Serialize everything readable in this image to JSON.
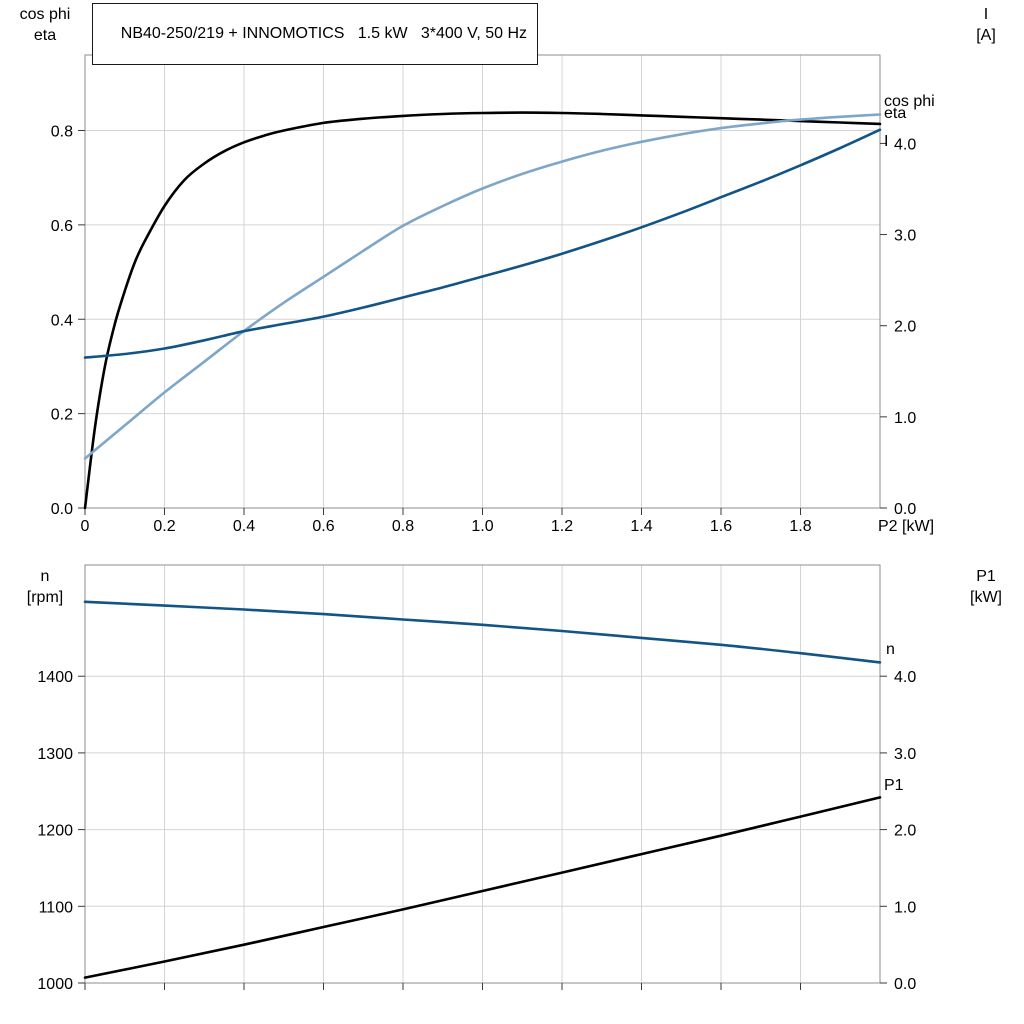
{
  "title": "NB40-250/219 + INNOMOTICS   1.5 kW   3*400 V, 50 Hz",
  "colors": {
    "black": "#000000",
    "dark_blue": "#125486",
    "light_blue": "#7ea6c8",
    "grid": "#d4d4d4",
    "frame": "#8c8c8c"
  },
  "chart_data": [
    {
      "type": "line",
      "title": "Motor electrical curves",
      "xlabel": "P2 [kW]",
      "xlim": [
        0,
        2.0
      ],
      "grid": true,
      "legend_position": "curve-end-labels",
      "xticks": {
        "values": [
          0,
          0.2,
          0.4,
          0.6,
          0.8,
          1.0,
          1.2,
          1.4,
          1.6,
          1.8
        ],
        "labels": [
          "0",
          "0.2",
          "0.4",
          "0.6",
          "0.8",
          "1.0",
          "1.2",
          "1.4",
          "1.6",
          "1.8"
        ]
      },
      "left_axis": {
        "label": "cos phi\neta",
        "lim": [
          0,
          0.96
        ],
        "ticks": {
          "values": [
            0,
            0.2,
            0.4,
            0.6,
            0.8
          ],
          "labels": [
            "0.0",
            "0.2",
            "0.4",
            "0.6",
            "0.8"
          ]
        }
      },
      "right_axis": {
        "label": "I\n[A]",
        "lim": [
          0,
          4.97
        ],
        "ticks": {
          "values": [
            0,
            1.0,
            2.0,
            3.0,
            4.0
          ],
          "labels": [
            "0.0",
            "1.0",
            "2.0",
            "3.0",
            "4.0"
          ]
        }
      },
      "series": [
        {
          "name": "eta",
          "label": "eta",
          "axis": "left",
          "color": "#000000",
          "x": [
            0,
            0.025,
            0.05,
            0.075,
            0.1,
            0.125,
            0.15,
            0.2,
            0.25,
            0.3,
            0.35,
            0.4,
            0.45,
            0.5,
            0.6,
            0.7,
            0.8,
            0.9,
            1.0,
            1.1,
            1.2,
            1.3,
            1.4,
            1.5,
            1.6,
            1.7,
            1.8,
            1.9,
            2.0
          ],
          "y": [
            0,
            0.17,
            0.3,
            0.39,
            0.46,
            0.52,
            0.565,
            0.64,
            0.695,
            0.73,
            0.756,
            0.775,
            0.789,
            0.8,
            0.816,
            0.825,
            0.831,
            0.835,
            0.837,
            0.838,
            0.837,
            0.835,
            0.832,
            0.829,
            0.826,
            0.823,
            0.82,
            0.817,
            0.814
          ]
        },
        {
          "name": "cos phi",
          "label": "cos phi",
          "axis": "left",
          "color": "#7ea6c8",
          "x": [
            0,
            0.1,
            0.2,
            0.3,
            0.4,
            0.5,
            0.6,
            0.7,
            0.8,
            0.9,
            1.0,
            1.1,
            1.2,
            1.3,
            1.4,
            1.5,
            1.6,
            1.7,
            1.8,
            1.9,
            2.0
          ],
          "y": [
            0.105,
            0.175,
            0.245,
            0.31,
            0.375,
            0.435,
            0.49,
            0.545,
            0.598,
            0.64,
            0.677,
            0.708,
            0.734,
            0.757,
            0.776,
            0.792,
            0.805,
            0.815,
            0.823,
            0.829,
            0.834
          ]
        },
        {
          "name": "I",
          "label": "I",
          "axis": "right",
          "color": "#125486",
          "x": [
            0,
            0.1,
            0.2,
            0.3,
            0.4,
            0.5,
            0.6,
            0.7,
            0.8,
            0.9,
            1.0,
            1.1,
            1.2,
            1.3,
            1.4,
            1.5,
            1.6,
            1.7,
            1.8,
            1.9,
            2.0
          ],
          "y": [
            1.65,
            1.69,
            1.75,
            1.84,
            1.94,
            2.02,
            2.1,
            2.2,
            2.31,
            2.42,
            2.54,
            2.66,
            2.79,
            2.93,
            3.08,
            3.24,
            3.41,
            3.58,
            3.76,
            3.95,
            4.15
          ]
        }
      ]
    },
    {
      "type": "line",
      "title": "Speed and input power curves",
      "xlabel": "",
      "xlim": [
        0,
        2.0
      ],
      "grid": true,
      "legend_position": "curve-end-labels",
      "xticks": {
        "values": [
          0,
          0.2,
          0.4,
          0.6,
          0.8,
          1.0,
          1.2,
          1.4,
          1.6,
          1.8
        ],
        "labels": []
      },
      "left_axis": {
        "label": "n\n[rpm]",
        "lim": [
          1000,
          1545
        ],
        "ticks": {
          "values": [
            1000,
            1100,
            1200,
            1300,
            1400
          ],
          "labels": [
            "1000",
            "1100",
            "1200",
            "1300",
            "1400"
          ]
        }
      },
      "right_axis": {
        "label": "P1\n[kW]",
        "lim": [
          0,
          5.45
        ],
        "ticks": {
          "values": [
            0,
            1.0,
            2.0,
            3.0,
            4.0
          ],
          "labels": [
            "0.0",
            "1.0",
            "2.0",
            "3.0",
            "4.0"
          ]
        }
      },
      "series": [
        {
          "name": "n",
          "label": "n",
          "axis": "left",
          "color": "#125486",
          "x": [
            0,
            0.2,
            0.4,
            0.6,
            0.8,
            1.0,
            1.2,
            1.4,
            1.6,
            1.8,
            2.0
          ],
          "y": [
            1497,
            1492,
            1487,
            1481,
            1474,
            1467,
            1459,
            1450,
            1441,
            1430,
            1418
          ]
        },
        {
          "name": "P1",
          "label": "P1",
          "axis": "right",
          "color": "#000000",
          "x": [
            0,
            0.2,
            0.4,
            0.6,
            0.8,
            1.0,
            1.2,
            1.4,
            1.6,
            1.8,
            2.0
          ],
          "y": [
            0.07,
            0.28,
            0.5,
            0.73,
            0.96,
            1.2,
            1.44,
            1.68,
            1.92,
            2.17,
            2.42
          ]
        }
      ]
    }
  ]
}
